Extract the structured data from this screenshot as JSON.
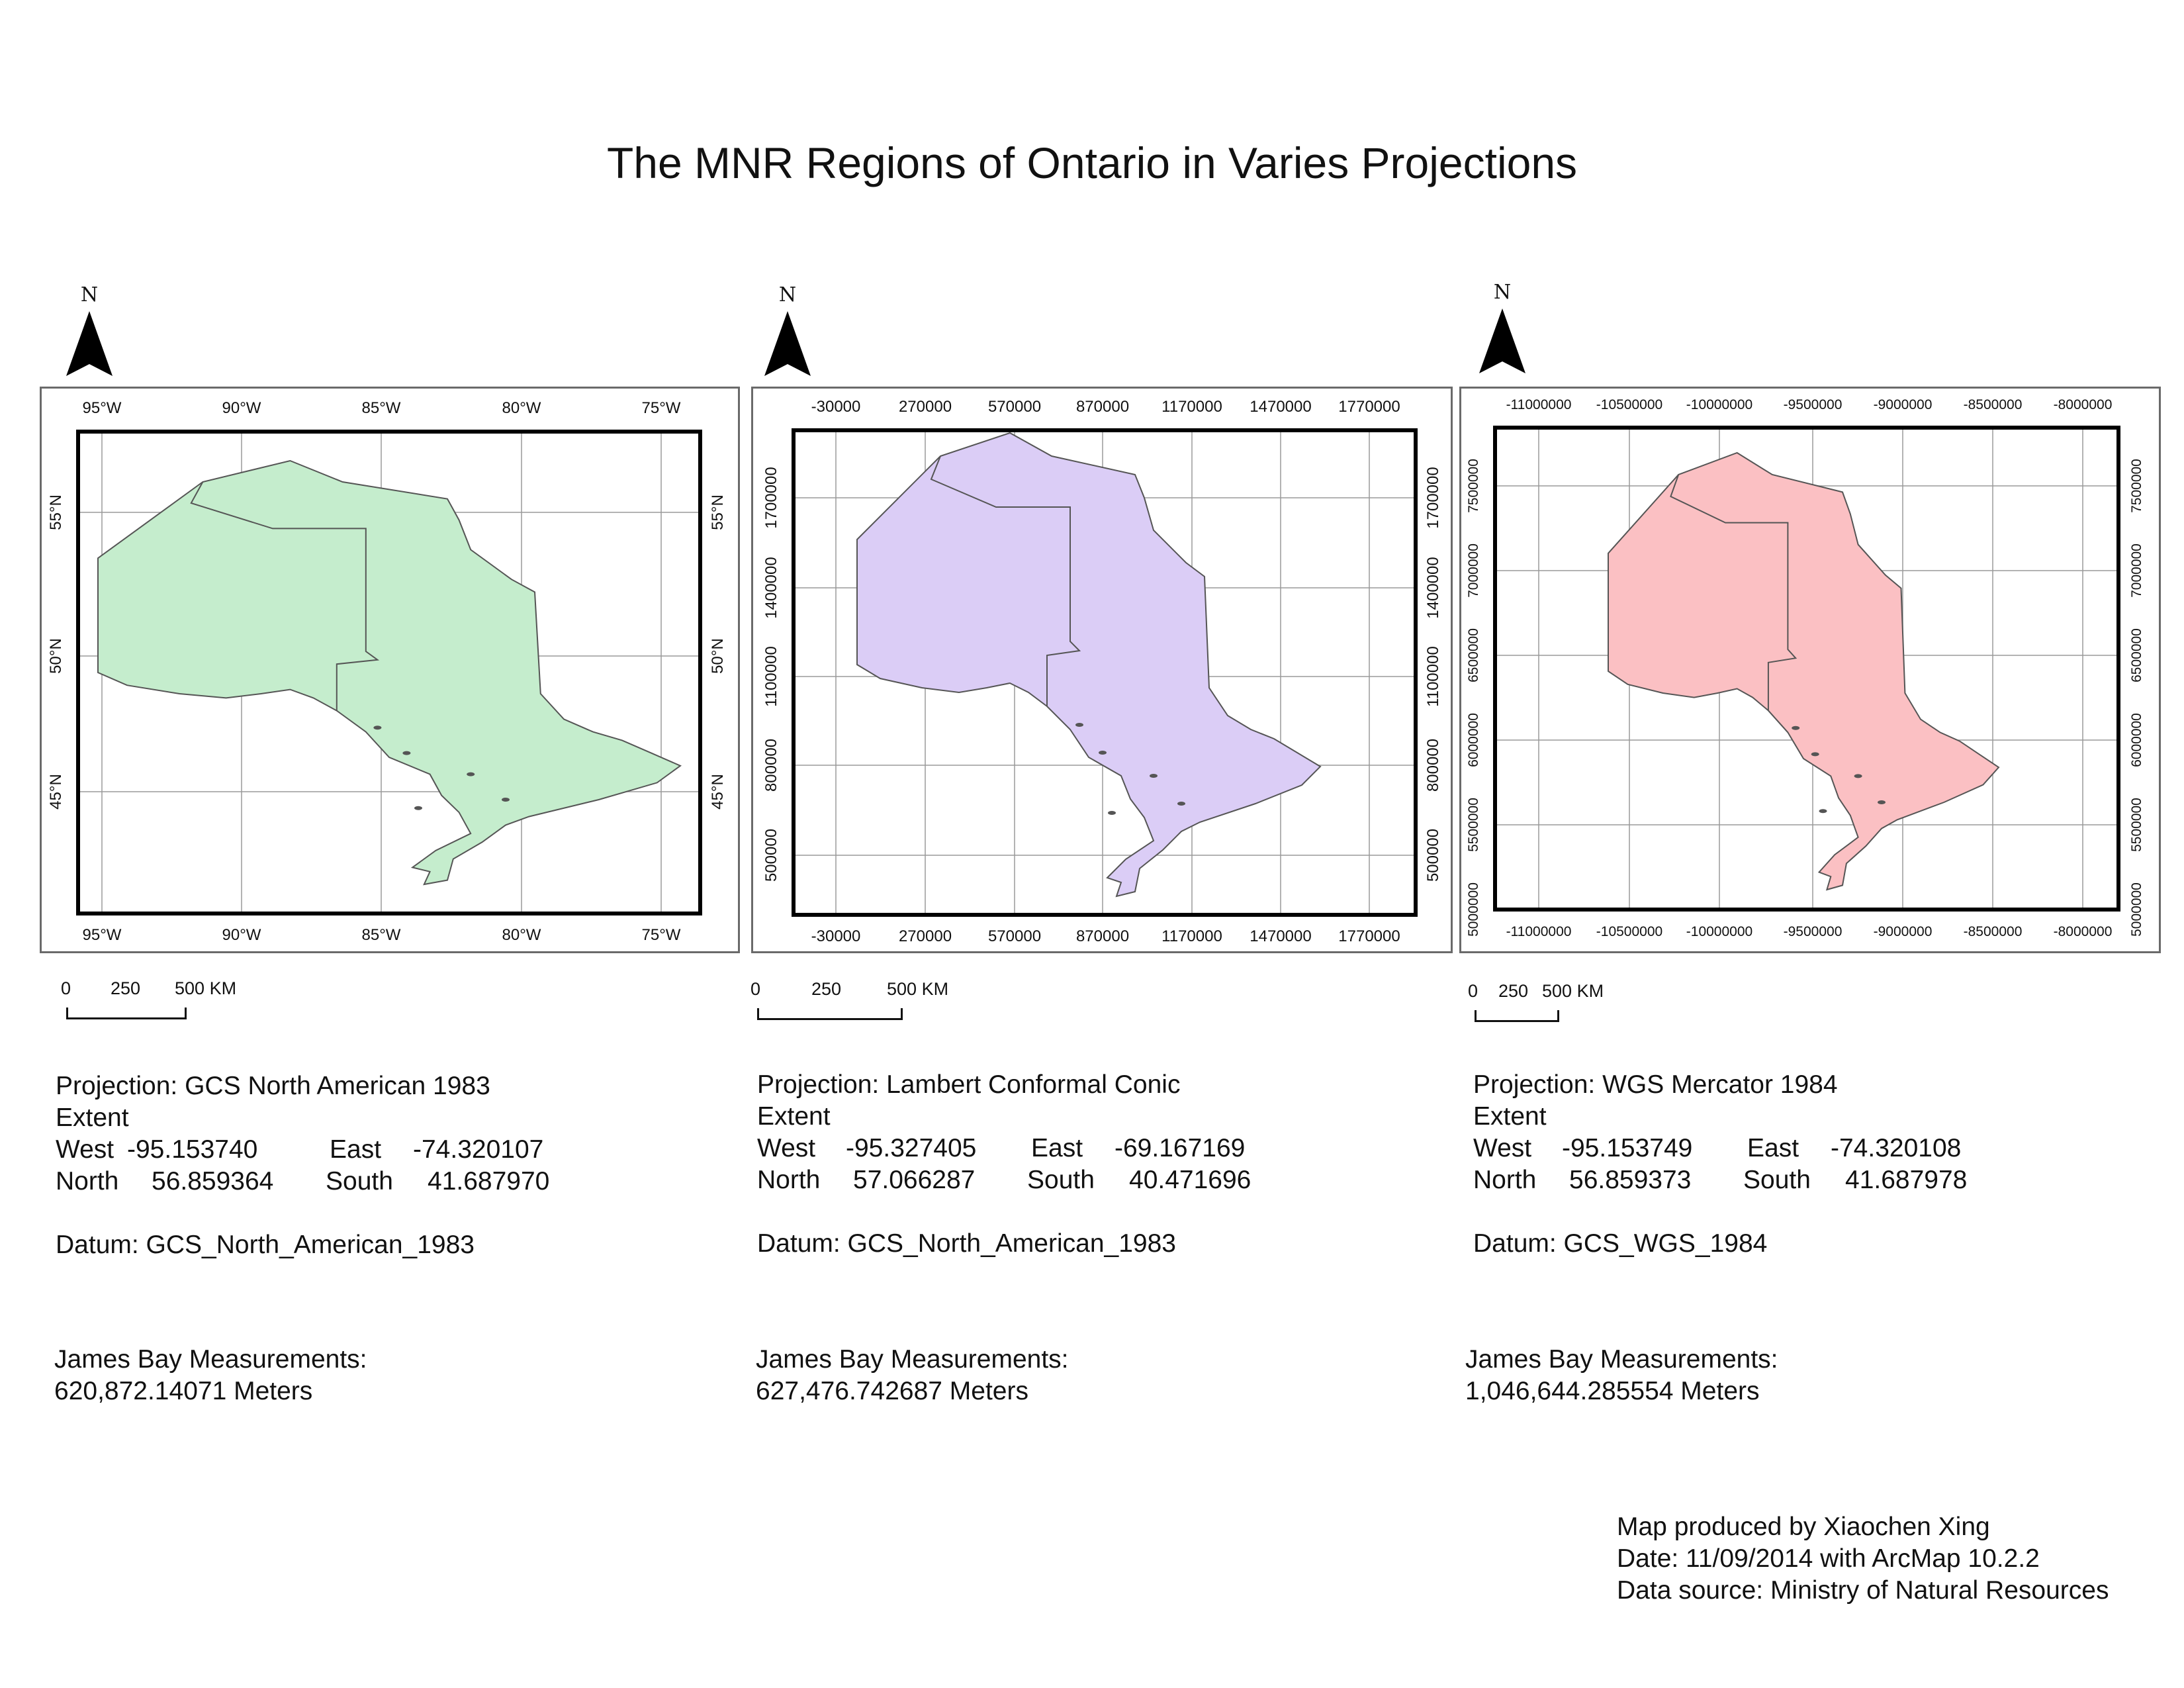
{
  "title": "The MNR Regions of Ontario in Varies Projections",
  "north_label": "N",
  "scale_unit": "KM",
  "colors": {
    "panel1": "#c5edcd",
    "panel2": "#dbcdf6",
    "panel3": "#fbc0c3",
    "outline": "#555555"
  },
  "panels": [
    {
      "fill_key": "panel1",
      "top_ticks": [
        "95°W",
        "90°W",
        "85°W",
        "80°W",
        "75°W"
      ],
      "bottom_ticks": [
        "95°W",
        "90°W",
        "85°W",
        "80°W",
        "75°W"
      ],
      "left_ticks": [
        "55°N",
        "50°N",
        "45°N"
      ],
      "right_ticks": [
        "55°N",
        "50°N",
        "45°N"
      ],
      "scale": [
        "0",
        "250",
        "500"
      ],
      "projection": "Projection: GCS North American 1983",
      "extent_label": "Extent",
      "west_label": "West",
      "west": "-95.153740",
      "east_label": "East",
      "east": "-74.320107",
      "north_label": "North",
      "north": "56.859364",
      "south_label": "South",
      "south": "41.687970",
      "datum": "Datum: GCS_North_American_1983",
      "measure_label": "James Bay Measurements:",
      "measure": "620,872.14071 Meters"
    },
    {
      "fill_key": "panel2",
      "top_ticks": [
        "-30000",
        "270000",
        "570000",
        "870000",
        "1170000",
        "1470000",
        "1770000"
      ],
      "bottom_ticks": [
        "-30000",
        "270000",
        "570000",
        "870000",
        "1170000",
        "1470000",
        "1770000"
      ],
      "left_ticks": [
        "1700000",
        "1400000",
        "1100000",
        "800000",
        "500000"
      ],
      "right_ticks": [
        "1700000",
        "1400000",
        "1100000",
        "800000",
        "500000"
      ],
      "scale": [
        "0",
        "250",
        "500"
      ],
      "projection": "Projection: Lambert Conformal Conic",
      "extent_label": "Extent",
      "west_label": "West",
      "west": "-95.327405",
      "east_label": "East",
      "east": "-69.167169",
      "north_label": "North",
      "north": "57.066287",
      "south_label": "South",
      "south": "40.471696",
      "datum": "Datum: GCS_North_American_1983",
      "measure_label": "James Bay Measurements:",
      "measure": "627,476.742687 Meters"
    },
    {
      "fill_key": "panel3",
      "top_ticks": [
        "-11000000",
        "-10500000",
        "-10000000",
        "-9500000",
        "-9000000",
        "-8500000",
        "-8000000"
      ],
      "bottom_ticks": [
        "-11000000",
        "-10500000",
        "-10000000",
        "-9500000",
        "-9000000",
        "-8500000",
        "-8000000"
      ],
      "left_ticks": [
        "7500000",
        "7000000",
        "6500000",
        "6000000",
        "5500000",
        "5000000"
      ],
      "right_ticks": [
        "7500000",
        "7000000",
        "6500000",
        "6000000",
        "5500000",
        "5000000"
      ],
      "scale": [
        "0",
        "250",
        "500"
      ],
      "projection": "Projection: WGS Mercator 1984",
      "extent_label": "Extent",
      "west_label": "West",
      "west": "-95.153749",
      "east_label": "East",
      "east": "-74.320108",
      "north_label": "North",
      "north": "56.859373",
      "south_label": "South",
      "south": "41.687978",
      "datum": "Datum: GCS_WGS_1984",
      "measure_label": "James Bay Measurements:",
      "measure": "1,046,644.285554 Meters"
    }
  ],
  "credits": {
    "line1": "Map produced by Xiaochen Xing",
    "line2": "Date: 11/09/2014 with ArcMap 10.2.2",
    "line3": "Data source: Ministry of Natural Resources"
  }
}
